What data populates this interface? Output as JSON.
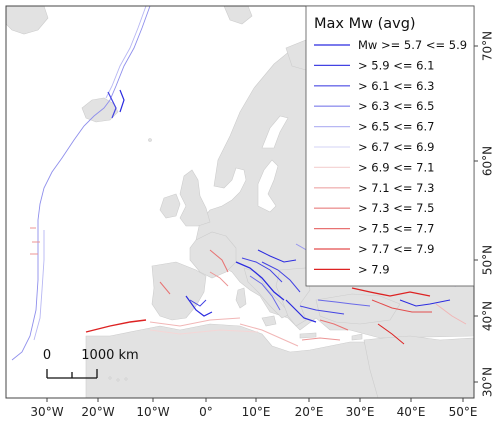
{
  "legend": {
    "title": "Max Mw (avg)",
    "items": [
      {
        "label": "Mw >= 5.7 <= 5.9",
        "color": "#2b2be0"
      },
      {
        "label": "> 5.9 <= 6.1",
        "color": "#4343e3"
      },
      {
        "label": "> 6.1 <= 6.3",
        "color": "#6a6ae8"
      },
      {
        "label": "> 6.3 <= 6.5",
        "color": "#9393ee"
      },
      {
        "label": "> 6.5 <= 6.7",
        "color": "#b7b7f3"
      },
      {
        "label": "> 6.7 <= 6.9",
        "color": "#dcdcf8"
      },
      {
        "label": "> 6.9 <= 7.1",
        "color": "#f5d6d6"
      },
      {
        "label": "> 7.1 <= 7.3",
        "color": "#f1b6b6"
      },
      {
        "label": "> 7.3 <= 7.5",
        "color": "#ec9595"
      },
      {
        "label": "> 7.5 <= 7.7",
        "color": "#e87272"
      },
      {
        "label": "> 7.7 <= 7.9",
        "color": "#e34d4d"
      },
      {
        "label": "> 7.9",
        "color": "#dd2222"
      }
    ]
  },
  "axes": {
    "lon_labels": [
      "30°W",
      "20°W",
      "10°W",
      "0°",
      "10°E",
      "20°E",
      "30°E",
      "40°E",
      "50°E"
    ],
    "lat_labels": [
      "70°N",
      "60°N",
      "50°N",
      "40°N",
      "30°N"
    ]
  },
  "scale_bar": {
    "start_label": "0",
    "end_label": "1000 km"
  },
  "colors": {
    "land": "#e2e2e2",
    "sea": "#ffffff",
    "coast": "#c9c9c9",
    "frame": "#444444"
  }
}
